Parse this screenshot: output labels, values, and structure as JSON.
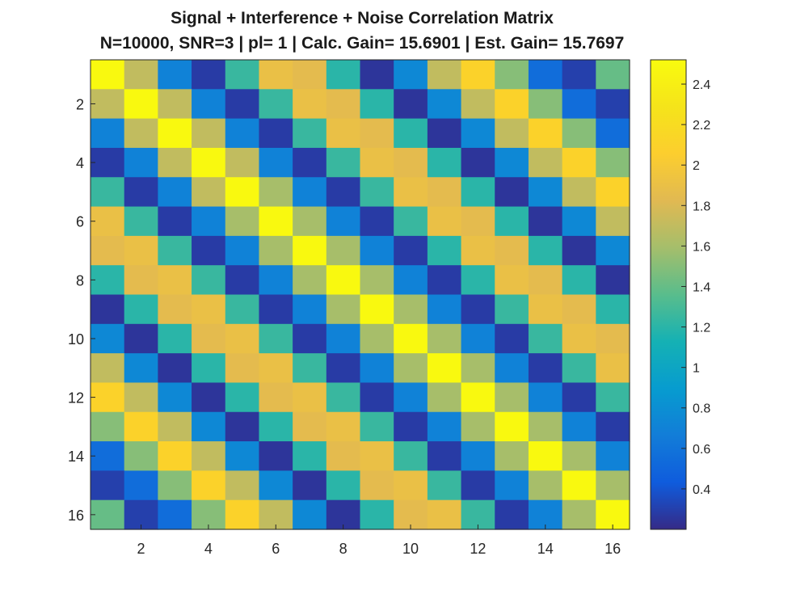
{
  "chart_data": {
    "type": "heatmap",
    "title": "Signal + Interference + Noise Correlation Matrix",
    "subtitle": "N=10000, SNR=3 | pl= 1 | Calc. Gain= 15.6901 | Est. Gain= 15.7697",
    "xlabel": "",
    "ylabel": "",
    "rows": 16,
    "cols": 16,
    "x_ticks": [
      2,
      4,
      6,
      8,
      10,
      12,
      14,
      16
    ],
    "y_ticks": [
      2,
      4,
      6,
      8,
      10,
      12,
      14,
      16
    ],
    "colorbar": {
      "min": 0.2,
      "max": 2.52,
      "ticks": [
        0.4,
        0.6,
        0.8,
        1,
        1.2,
        1.4,
        1.6,
        1.8,
        2,
        2.2,
        2.4
      ],
      "tick_labels": [
        "0.4",
        "0.6",
        "0.8",
        "1",
        "1.2",
        "1.4",
        "1.6",
        "1.8",
        "2",
        "2.2",
        "2.4"
      ],
      "colormap": "parula"
    },
    "kernel_by_offset": [
      2.5,
      1.7,
      0.7,
      0.28,
      1.55,
      1.95,
      1.9,
      1.25,
      0.25,
      0.75,
      1.7,
      2.1,
      1.5,
      0.55,
      0.3,
      1.4
    ],
    "values": [
      [
        2.5,
        1.7,
        0.7,
        0.28,
        1.25,
        1.9,
        1.85,
        1.2,
        0.25,
        0.75,
        1.7,
        2.1,
        1.5,
        0.55,
        0.3,
        1.4
      ],
      [
        1.7,
        2.5,
        1.7,
        0.7,
        0.28,
        1.25,
        1.9,
        1.85,
        1.2,
        0.25,
        0.75,
        1.7,
        2.1,
        1.5,
        0.55,
        0.3
      ],
      [
        0.7,
        1.7,
        2.5,
        1.7,
        0.7,
        0.28,
        1.25,
        1.9,
        1.85,
        1.2,
        0.25,
        0.75,
        1.7,
        2.1,
        1.5,
        0.55
      ],
      [
        0.28,
        0.7,
        1.7,
        2.5,
        1.7,
        0.7,
        0.28,
        1.25,
        1.9,
        1.85,
        1.2,
        0.25,
        0.75,
        1.7,
        2.1,
        1.5
      ],
      [
        1.25,
        0.28,
        0.7,
        1.7,
        2.5,
        1.6,
        0.7,
        0.28,
        1.25,
        1.9,
        1.85,
        1.2,
        0.25,
        0.75,
        1.7,
        2.1
      ],
      [
        1.9,
        1.25,
        0.28,
        0.7,
        1.6,
        2.5,
        1.6,
        0.7,
        0.28,
        1.25,
        1.9,
        1.85,
        1.2,
        0.25,
        0.75,
        1.7
      ],
      [
        1.85,
        1.9,
        1.25,
        0.28,
        0.7,
        1.6,
        2.5,
        1.6,
        0.7,
        0.28,
        1.2,
        1.9,
        1.85,
        1.2,
        0.25,
        0.75
      ],
      [
        1.2,
        1.85,
        1.9,
        1.25,
        0.28,
        0.7,
        1.6,
        2.5,
        1.6,
        0.7,
        0.28,
        1.2,
        1.9,
        1.85,
        1.2,
        0.25
      ],
      [
        0.25,
        1.2,
        1.85,
        1.9,
        1.25,
        0.28,
        0.7,
        1.6,
        2.5,
        1.6,
        0.7,
        0.28,
        1.25,
        1.9,
        1.85,
        1.2
      ],
      [
        0.75,
        0.25,
        1.2,
        1.85,
        1.9,
        1.25,
        0.28,
        0.7,
        1.6,
        2.5,
        1.6,
        0.7,
        0.28,
        1.25,
        1.9,
        1.85
      ],
      [
        1.7,
        0.75,
        0.25,
        1.2,
        1.85,
        1.9,
        1.25,
        0.28,
        0.7,
        1.6,
        2.5,
        1.6,
        0.7,
        0.28,
        1.25,
        1.9
      ],
      [
        2.1,
        1.7,
        0.75,
        0.25,
        1.2,
        1.85,
        1.9,
        1.25,
        0.28,
        0.7,
        1.6,
        2.5,
        1.6,
        0.7,
        0.28,
        1.25
      ],
      [
        1.5,
        2.1,
        1.7,
        0.75,
        0.25,
        1.2,
        1.85,
        1.9,
        1.25,
        0.28,
        0.7,
        1.6,
        2.5,
        1.6,
        0.7,
        0.28
      ],
      [
        0.55,
        1.5,
        2.1,
        1.7,
        0.75,
        0.25,
        1.2,
        1.85,
        1.9,
        1.25,
        0.28,
        0.7,
        1.6,
        2.5,
        1.6,
        0.7
      ],
      [
        0.3,
        0.55,
        1.5,
        2.1,
        1.7,
        0.75,
        0.25,
        1.2,
        1.85,
        1.9,
        1.25,
        0.28,
        0.7,
        1.6,
        2.5,
        1.6
      ],
      [
        1.4,
        0.3,
        0.55,
        1.5,
        2.1,
        1.7,
        0.75,
        0.25,
        1.2,
        1.85,
        1.9,
        1.25,
        0.28,
        0.7,
        1.6,
        2.5
      ]
    ]
  }
}
